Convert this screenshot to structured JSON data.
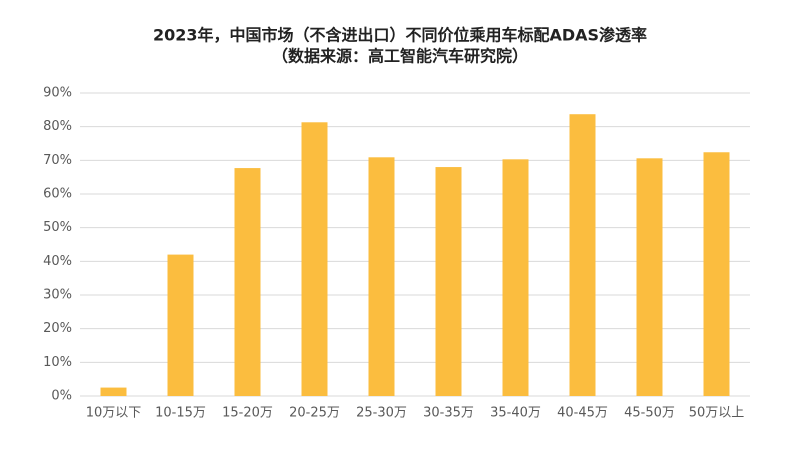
{
  "chart_data": {
    "type": "bar",
    "title": "2023年，中国市场（不含进出口）不同价位乘用车标配ADAS渗透率",
    "subtitle": "（数据来源：高工智能汽车研究院）",
    "categories": [
      "10万以下",
      "10-15万",
      "15-20万",
      "20-25万",
      "25-30万",
      "30-35万",
      "35-40万",
      "40-45万",
      "45-50万",
      "50万以上"
    ],
    "values": [
      2.5,
      42,
      67.7,
      81.3,
      70.9,
      68,
      70.3,
      83.7,
      70.6,
      72.4
    ],
    "color": "#fbbd3f",
    "ylim": [
      0,
      90
    ],
    "yticks": [
      {
        "value": 0,
        "label": "0%"
      },
      {
        "value": 10,
        "label": "10%"
      },
      {
        "value": 20,
        "label": "20%"
      },
      {
        "value": 30,
        "label": "30%"
      },
      {
        "value": 40,
        "label": "40%"
      },
      {
        "value": 50,
        "label": "50%"
      },
      {
        "value": 60,
        "label": "60%"
      },
      {
        "value": 70,
        "label": "70%"
      },
      {
        "value": 80,
        "label": "80%"
      },
      {
        "value": 90,
        "label": "90%"
      }
    ],
    "grid": true
  }
}
